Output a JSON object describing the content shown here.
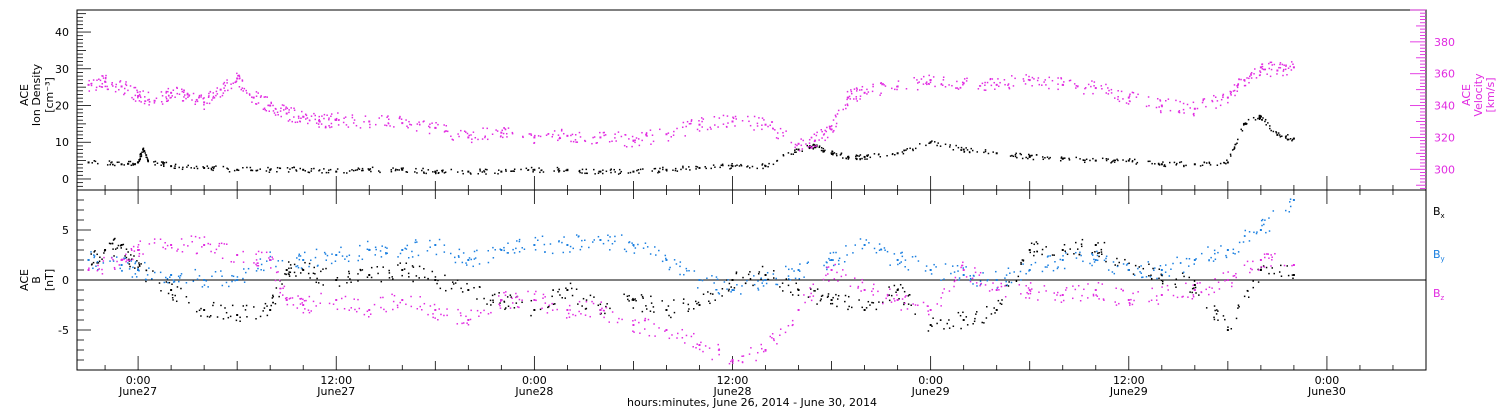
{
  "chart_data": [
    {
      "type": "scatter",
      "panel": "top",
      "ylabel_left": [
        "ACE",
        "Ion Density",
        "[cm⁻³]"
      ],
      "ylabel_right": [
        "ACE",
        "Velocity",
        "[km/s]"
      ],
      "ylim_left": [
        -3,
        46
      ],
      "yticks_left": [
        0,
        10,
        20,
        30,
        40
      ],
      "ylim_right": [
        287,
        400
      ],
      "yticks_right": [
        300,
        320,
        340,
        360,
        380
      ],
      "x_unit": "hours since June 27 0:00",
      "series": [
        {
          "axis": "left",
          "color": "#000000",
          "points": [
            [
              -3,
              4.5
            ],
            [
              -1,
              4
            ],
            [
              0,
              4.5
            ],
            [
              0.3,
              8
            ],
            [
              0.6,
              5
            ],
            [
              2,
              3.5
            ],
            [
              4,
              3
            ],
            [
              6,
              2.5
            ],
            [
              8,
              2.5
            ],
            [
              10,
              2.5
            ],
            [
              12,
              2
            ],
            [
              14,
              2.5
            ],
            [
              16,
              2.5
            ],
            [
              18,
              2
            ],
            [
              20,
              2
            ],
            [
              22,
              2
            ],
            [
              24,
              2.5
            ],
            [
              26,
              2.5
            ],
            [
              28,
              2
            ],
            [
              30,
              2
            ],
            [
              32,
              2.5
            ],
            [
              34,
              3
            ],
            [
              36,
              3.5
            ],
            [
              38,
              3.5
            ],
            [
              40,
              8
            ],
            [
              41,
              9
            ],
            [
              42,
              7
            ],
            [
              43,
              6
            ],
            [
              44,
              6
            ],
            [
              46,
              7
            ],
            [
              48,
              10
            ],
            [
              50,
              8
            ],
            [
              52,
              7
            ],
            [
              54,
              6
            ],
            [
              56,
              5.5
            ],
            [
              58,
              5
            ],
            [
              60,
              5
            ],
            [
              62,
              4
            ],
            [
              64,
              4
            ],
            [
              66,
              4.5
            ],
            [
              67,
              15
            ],
            [
              68,
              17
            ],
            [
              69,
              12
            ],
            [
              70,
              11
            ]
          ]
        },
        {
          "axis": "right",
          "color": "#e12be1",
          "points": [
            [
              -3,
              353
            ],
            [
              -2,
              355
            ],
            [
              -1,
              352
            ],
            [
              0,
              346
            ],
            [
              1,
              343
            ],
            [
              2,
              348
            ],
            [
              3,
              347
            ],
            [
              4,
              342
            ],
            [
              5,
              350
            ],
            [
              6,
              357
            ],
            [
              7,
              345
            ],
            [
              8,
              340
            ],
            [
              9,
              335
            ],
            [
              10,
              333
            ],
            [
              11,
              330
            ],
            [
              12,
              331
            ],
            [
              14,
              330
            ],
            [
              16,
              329
            ],
            [
              18,
              326
            ],
            [
              20,
              320
            ],
            [
              22,
              323
            ],
            [
              24,
              320
            ],
            [
              26,
              321
            ],
            [
              28,
              320
            ],
            [
              30,
              318
            ],
            [
              32,
              322
            ],
            [
              34,
              328
            ],
            [
              36,
              330
            ],
            [
              38,
              328
            ],
            [
              40,
              316
            ],
            [
              41,
              318
            ],
            [
              42,
              325
            ],
            [
              43,
              345
            ],
            [
              44,
              348
            ],
            [
              46,
              352
            ],
            [
              48,
              356
            ],
            [
              50,
              354
            ],
            [
              52,
              353
            ],
            [
              54,
              356
            ],
            [
              56,
              353
            ],
            [
              58,
              351
            ],
            [
              60,
              345
            ],
            [
              62,
              340
            ],
            [
              64,
              338
            ],
            [
              66,
              345
            ],
            [
              67,
              356
            ],
            [
              68,
              364
            ],
            [
              69,
              362
            ],
            [
              70,
              364
            ]
          ]
        }
      ]
    },
    {
      "type": "scatter",
      "panel": "bottom",
      "ylabel_left": [
        "ACE",
        "B",
        "[nT]"
      ],
      "ylim": [
        -9,
        9
      ],
      "yticks": [
        -5,
        0,
        5
      ],
      "zero_line": true,
      "x_unit": "hours since June 27 0:00",
      "series": [
        {
          "name": "Bₓ",
          "color": "#000000",
          "points": [
            [
              -3,
              2
            ],
            [
              -2,
              3
            ],
            [
              -1,
              3.5
            ],
            [
              0,
              1
            ],
            [
              2,
              -1
            ],
            [
              4,
              -3
            ],
            [
              6,
              -3.5
            ],
            [
              8,
              -3
            ],
            [
              9,
              1
            ],
            [
              10,
              1
            ],
            [
              12,
              0
            ],
            [
              14,
              0.5
            ],
            [
              16,
              1
            ],
            [
              18,
              0
            ],
            [
              20,
              -1
            ],
            [
              22,
              -2
            ],
            [
              24,
              -3
            ],
            [
              26,
              -1
            ],
            [
              28,
              -3
            ],
            [
              30,
              -2
            ],
            [
              32,
              -3
            ],
            [
              34,
              -2.5
            ],
            [
              36,
              0
            ],
            [
              38,
              0.5
            ],
            [
              40,
              -1
            ],
            [
              42,
              -2
            ],
            [
              44,
              -3
            ],
            [
              46,
              -1
            ],
            [
              48,
              -4.5
            ],
            [
              50,
              -4
            ],
            [
              52,
              -3
            ],
            [
              54,
              3
            ],
            [
              56,
              3
            ],
            [
              58,
              3.5
            ],
            [
              60,
              1
            ],
            [
              62,
              0.5
            ],
            [
              64,
              -0.5
            ],
            [
              66,
              -5
            ],
            [
              68,
              1
            ],
            [
              70,
              0.5
            ]
          ]
        },
        {
          "name": "Bᵧ",
          "color": "#1a7fe0",
          "points": [
            [
              -3,
              2
            ],
            [
              -1,
              1.5
            ],
            [
              0,
              1
            ],
            [
              2,
              0.5
            ],
            [
              4,
              0
            ],
            [
              6,
              0
            ],
            [
              8,
              2
            ],
            [
              10,
              2
            ],
            [
              12,
              2.5
            ],
            [
              14,
              3
            ],
            [
              16,
              3
            ],
            [
              18,
              3.5
            ],
            [
              20,
              2
            ],
            [
              22,
              3
            ],
            [
              24,
              3.5
            ],
            [
              26,
              3.5
            ],
            [
              28,
              4
            ],
            [
              30,
              3.5
            ],
            [
              32,
              2
            ],
            [
              34,
              0
            ],
            [
              36,
              -1
            ],
            [
              38,
              0
            ],
            [
              40,
              1
            ],
            [
              42,
              2
            ],
            [
              44,
              3.5
            ],
            [
              46,
              2
            ],
            [
              48,
              1
            ],
            [
              50,
              0.5
            ],
            [
              52,
              0
            ],
            [
              54,
              1
            ],
            [
              56,
              2
            ],
            [
              58,
              2
            ],
            [
              60,
              1
            ],
            [
              62,
              1
            ],
            [
              64,
              2
            ],
            [
              66,
              3
            ],
            [
              68,
              5
            ],
            [
              70,
              8
            ]
          ]
        },
        {
          "name": "B_z",
          "color": "#e12be1",
          "points": [
            [
              -3,
              1
            ],
            [
              -1,
              2
            ],
            [
              0,
              3
            ],
            [
              2,
              3.5
            ],
            [
              4,
              3.5
            ],
            [
              6,
              2.5
            ],
            [
              8,
              2
            ],
            [
              9,
              -2
            ],
            [
              10,
              -2.5
            ],
            [
              12,
              -2
            ],
            [
              14,
              -3
            ],
            [
              16,
              -2
            ],
            [
              18,
              -3
            ],
            [
              20,
              -4
            ],
            [
              22,
              -2
            ],
            [
              24,
              -2
            ],
            [
              26,
              -3
            ],
            [
              28,
              -3
            ],
            [
              30,
              -4.5
            ],
            [
              32,
              -5
            ],
            [
              34,
              -6.5
            ],
            [
              36,
              -8
            ],
            [
              38,
              -7
            ],
            [
              40,
              -3
            ],
            [
              42,
              1
            ],
            [
              44,
              -1
            ],
            [
              46,
              -2
            ],
            [
              48,
              -3
            ],
            [
              50,
              1
            ],
            [
              52,
              -1
            ],
            [
              54,
              -1
            ],
            [
              56,
              -1.5
            ],
            [
              58,
              -1
            ],
            [
              60,
              -2
            ],
            [
              62,
              -1.5
            ],
            [
              64,
              -1
            ],
            [
              66,
              0
            ],
            [
              68,
              2
            ],
            [
              70,
              1.5
            ]
          ]
        }
      ]
    }
  ],
  "xaxis": {
    "range": [
      -3.7,
      78
    ],
    "ticks": [
      {
        "hours": 0,
        "time": "0:00",
        "date": "June27"
      },
      {
        "hours": 12,
        "time": "12:00",
        "date": "June27"
      },
      {
        "hours": 24,
        "time": "0:00",
        "date": "June28"
      },
      {
        "hours": 36,
        "time": "12:00",
        "date": "June28"
      },
      {
        "hours": 48,
        "time": "0:00",
        "date": "June29"
      },
      {
        "hours": 60,
        "time": "12:00",
        "date": "June29"
      },
      {
        "hours": 72,
        "time": "0:00",
        "date": "June30"
      }
    ],
    "label": "hours:minutes, June 26, 2014 - June 30, 2014"
  },
  "legend": {
    "placement": "right",
    "items": [
      {
        "base": "B",
        "sub": "x",
        "color": "#000000"
      },
      {
        "base": "B",
        "sub": "y",
        "color": "#1a7fe0"
      },
      {
        "base": "B",
        "sub": "z",
        "color": "#e12be1"
      }
    ]
  }
}
